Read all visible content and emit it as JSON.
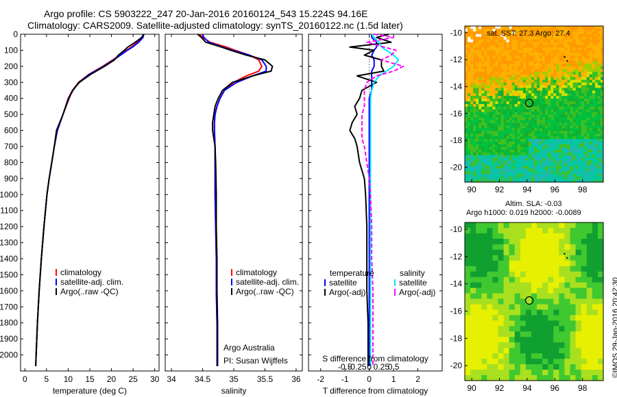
{
  "header": {
    "line1": "Argo profile: CS 5903222_247 20-Jan-2016 20160124_543 15.224S 94.16E",
    "line2": "Climatology: CARS2009. Satellite-adjusted climatology: synTS_20160122.nc (1.5d later)"
  },
  "stamp": "©IMOS 29-Jan-2016 20:42:30",
  "colors": {
    "climatology": "#ff0000",
    "satellite": "#0000ff",
    "argo": "#000000",
    "salinity_satellite": "#00e5ff",
    "salinity_argo": "#ff00ff"
  },
  "chart_data": [
    {
      "type": "line",
      "xlabel": "temperature (deg C)",
      "ylim": [
        2100,
        0
      ],
      "xlim": [
        -1,
        31
      ],
      "xticks": [
        0,
        5,
        10,
        15,
        20,
        25,
        30
      ],
      "xtick_labels": [
        "0",
        "5",
        "10",
        "15",
        "20",
        "25",
        "30"
      ],
      "yticks": [
        0,
        100,
        200,
        300,
        400,
        500,
        600,
        700,
        800,
        900,
        1000,
        1100,
        1200,
        1300,
        1400,
        1500,
        1600,
        1700,
        1800,
        1900,
        2000
      ],
      "ytick_labels": [
        "0",
        "100",
        "200",
        "300",
        "400",
        "500",
        "600",
        "700",
        "800",
        "900",
        "1000",
        "1100",
        "1200",
        "1300",
        "1400",
        "1500",
        "1600",
        "1700",
        "1800",
        "1900",
        "2000"
      ],
      "legend": [
        "climatology",
        "satellite-adj. clim.",
        "Argo(..raw -QC)"
      ],
      "depth": [
        0,
        20,
        50,
        80,
        100,
        130,
        160,
        200,
        250,
        300,
        350,
        400,
        500,
        600,
        700,
        800,
        900,
        1000,
        1200,
        1400,
        1600,
        1800,
        2000,
        2070
      ],
      "series": [
        {
          "name": "climatology",
          "values": [
            27.4,
            27.2,
            26.0,
            24.6,
            23.5,
            22.0,
            20.3,
            18.0,
            14.8,
            12.4,
            11.0,
            10.0,
            8.8,
            7.5,
            6.8,
            6.2,
            5.6,
            5.1,
            4.4,
            3.8,
            3.3,
            2.9,
            2.6,
            2.5
          ]
        },
        {
          "name": "satellite-adj. clim.",
          "values": [
            27.5,
            27.3,
            26.3,
            24.9,
            23.7,
            22.1,
            20.5,
            18.2,
            14.9,
            12.5,
            11.1,
            10.1,
            8.8,
            7.5,
            6.8,
            6.2,
            5.6,
            5.1,
            4.4,
            3.8,
            3.3,
            2.9,
            2.6,
            2.5
          ]
        },
        {
          "name": "Argo(..raw -QC)",
          "values": [
            27.4,
            27.0,
            25.5,
            23.8,
            23.0,
            21.6,
            20.7,
            18.4,
            15.2,
            12.6,
            11.0,
            10.2,
            8.8,
            7.3,
            6.8,
            6.2,
            5.6,
            5.1,
            4.4,
            3.8,
            3.3,
            2.9,
            2.6,
            2.5
          ]
        }
      ]
    },
    {
      "type": "line",
      "xlabel": "salinity",
      "ylim": [
        2100,
        0
      ],
      "xlim": [
        33.9,
        36.1
      ],
      "xticks": [
        34,
        34.5,
        35,
        35.5,
        36
      ],
      "xtick_labels": [
        "34",
        "34.5",
        "35",
        "35.5",
        "36"
      ],
      "legend": [
        "climatology",
        "satellite-adj. clim.",
        "Argo(..raw -QC)"
      ],
      "annotation": [
        "Argo Australia",
        "PI: Susan Wijffels"
      ],
      "depth": [
        0,
        20,
        50,
        80,
        100,
        130,
        160,
        200,
        230,
        260,
        300,
        350,
        400,
        450,
        500,
        550,
        600,
        700,
        800,
        1000,
        1200,
        1400,
        1600,
        1800,
        2000,
        2070
      ],
      "series": [
        {
          "name": "climatology",
          "values": [
            34.45,
            34.5,
            34.62,
            34.88,
            35.02,
            35.25,
            35.4,
            35.45,
            35.4,
            35.2,
            35.0,
            34.85,
            34.78,
            34.73,
            34.7,
            34.69,
            34.69,
            34.7,
            34.7,
            34.7,
            34.71,
            34.72,
            34.72,
            34.73,
            34.73,
            34.73
          ]
        },
        {
          "name": "satellite-adj. clim.",
          "values": [
            34.5,
            34.52,
            34.6,
            34.82,
            34.98,
            35.25,
            35.45,
            35.52,
            35.52,
            35.3,
            35.05,
            34.85,
            34.78,
            34.73,
            34.7,
            34.69,
            34.69,
            34.7,
            34.7,
            34.7,
            34.71,
            34.72,
            34.72,
            34.73,
            34.73,
            34.73
          ]
        },
        {
          "name": "Argo(..raw -QC)",
          "values": [
            34.42,
            34.48,
            34.55,
            34.8,
            34.95,
            35.2,
            35.5,
            35.62,
            35.6,
            35.3,
            34.98,
            34.82,
            34.75,
            34.7,
            34.68,
            34.66,
            34.66,
            34.7,
            34.71,
            34.72,
            34.72,
            34.73,
            34.73,
            34.74,
            34.74,
            34.74
          ]
        }
      ]
    },
    {
      "type": "line",
      "xlabel": "T difference from climatology",
      "xlabel_top": "S difference from climatology",
      "ylim": [
        2100,
        0
      ],
      "xlim": [
        -2.5,
        3.0
      ],
      "xticks": [
        -2,
        -1,
        0,
        1,
        2
      ],
      "xtick_labels": [
        "-2",
        "-1",
        "0",
        "1",
        "2"
      ],
      "xticks_top": [
        -1.0,
        -0.5,
        0,
        0.5,
        1.0
      ],
      "xtick_labels_top": [
        "-0.5",
        "-0.25",
        "0",
        "0.25",
        "0.5"
      ],
      "legend": [
        {
          "header": "temperature",
          "items": [
            "satellite",
            "Argo(-adj)"
          ]
        },
        {
          "header": "salinity",
          "items": [
            "satellite",
            "Argo(-adj)"
          ]
        }
      ],
      "depth": [
        0,
        20,
        50,
        80,
        100,
        130,
        160,
        200,
        230,
        260,
        300,
        350,
        400,
        450,
        500,
        550,
        600,
        650,
        700,
        800,
        900,
        1000,
        1200,
        1400,
        1600,
        1800,
        2000,
        2070
      ],
      "series": [
        {
          "name": "temperature satellite",
          "values": [
            0.1,
            0.1,
            0.3,
            0.3,
            0.2,
            0.1,
            0.2,
            0.2,
            0.1,
            0.1,
            0.1,
            0.1,
            0.0,
            0.0,
            0.0,
            0.0,
            0.0,
            0.0,
            0.0,
            0.0,
            0.0,
            0.0,
            0.0,
            0.0,
            0.0,
            0.0,
            0.0,
            0.0
          ]
        },
        {
          "name": "temperature Argo(-adj)",
          "values": [
            0.8,
            0.3,
            0.9,
            -0.8,
            0.2,
            -0.2,
            0.5,
            0.5,
            0.6,
            -0.5,
            0.3,
            -0.3,
            -0.4,
            -0.6,
            -0.5,
            -0.7,
            -0.8,
            -0.6,
            -0.5,
            -0.4,
            -0.2,
            -0.15,
            -0.1,
            -0.1,
            -0.1,
            -0.05,
            -0.05,
            -0.05
          ]
        },
        {
          "name": "salinity satellite",
          "values": [
            0.1,
            0.2,
            0.4,
            0.5,
            0.7,
            1.0,
            1.2,
            1.0,
            0.7,
            0.4,
            0.2,
            0.1,
            0.05,
            0.05,
            0.05,
            0.05,
            0.05,
            0.05,
            0.05,
            0.05,
            0.05,
            0.05,
            0.05,
            0.05,
            0.05,
            0.05,
            0.05,
            0.05
          ]
        },
        {
          "name": "salinity Argo(-adj)",
          "values": [
            0.2,
            1.0,
            -0.1,
            0.6,
            1.1,
            0.9,
            0.5,
            1.4,
            1.0,
            0.3,
            -0.1,
            -0.2,
            -0.2,
            -0.2,
            -0.3,
            -0.3,
            -0.3,
            -0.3,
            -0.2,
            -0.1,
            0.0,
            0.05,
            0.1,
            0.1,
            0.15,
            0.15,
            0.15,
            0.15
          ]
        }
      ]
    },
    {
      "type": "heatmap",
      "title": "sat. SST: 27.3 Argo: 27.4",
      "xlim": [
        89.5,
        99.5
      ],
      "ylim": [
        -21.1,
        -9.5
      ],
      "xticks": [
        90,
        92,
        94,
        96,
        98
      ],
      "xtick_labels": [
        "90",
        "92",
        "94",
        "96",
        "98"
      ],
      "yticks": [
        -10,
        -12,
        -14,
        -16,
        -18,
        -20
      ],
      "ytick_labels": [
        "-10",
        "-12",
        "-14",
        "-16",
        "-18",
        "-20"
      ],
      "marker": {
        "lon": 94.16,
        "lat": -15.224
      },
      "track": [
        {
          "lon": 96.7,
          "lat": -11.8
        },
        {
          "lon": 96.9,
          "lat": -12.1
        }
      ]
    },
    {
      "type": "heatmap",
      "title": "Altim. SLA: -0.03",
      "subtitle": "Argo h1000: 0.019 h2000: -0.0089",
      "xlim": [
        89.5,
        99.5
      ],
      "ylim": [
        -21.1,
        -9.5
      ],
      "xticks": [
        90,
        92,
        94,
        96,
        98
      ],
      "xtick_labels": [
        "90",
        "92",
        "94",
        "96",
        "98"
      ],
      "yticks": [
        -10,
        -12,
        -14,
        -16,
        -18,
        -20
      ],
      "ytick_labels": [
        "-10",
        "-12",
        "-14",
        "-16",
        "-18",
        "-20"
      ],
      "marker": {
        "lon": 94.16,
        "lat": -15.224
      },
      "track": [
        {
          "lon": 96.7,
          "lat": -11.8
        },
        {
          "lon": 96.9,
          "lat": -12.1
        }
      ]
    }
  ]
}
